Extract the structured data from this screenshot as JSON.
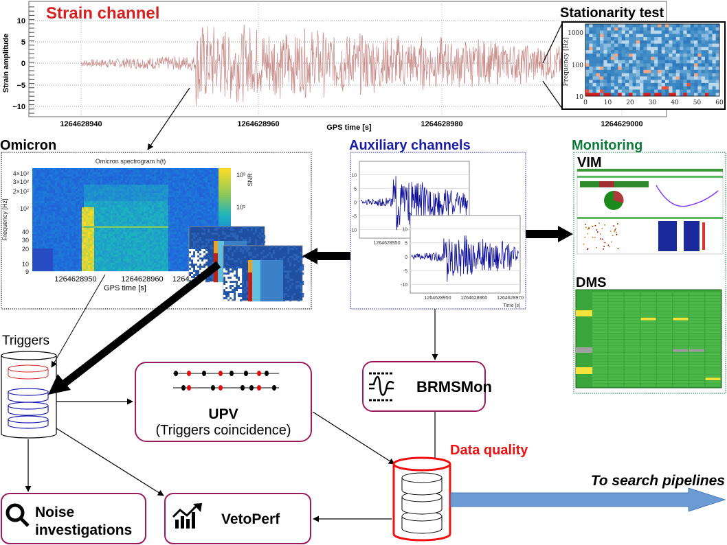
{
  "strain": {
    "title": "Strain channel",
    "ylabel": "Strain amplitude",
    "xlabel": "GPS time [s]",
    "yticks": [
      "10",
      "5",
      "0",
      "−5",
      "−10"
    ],
    "xticks": [
      "1264628940",
      "1264628960",
      "1264628980",
      "1264629000"
    ],
    "color": "#c9908e",
    "title_color": "#d42020"
  },
  "stationarity": {
    "title": "Stationarity test",
    "ylabel": "Frequency [Hz]",
    "yticks": [
      "1000",
      "100",
      "10"
    ],
    "xticks": [
      "0",
      "10",
      "20",
      "30",
      "40",
      "50",
      "60"
    ]
  },
  "omicron": {
    "label": "Omicron",
    "plot_title": "Omicron spectrogram h(t)",
    "ylabel": "Frequency [Hz]",
    "xlabel": "GPS time [s]",
    "yticks": [
      "4×10²",
      "3×10²",
      "2×10²",
      "10²",
      "40",
      "30",
      "20",
      "10",
      "9"
    ],
    "xticks": [
      "1264628950",
      "1264628960",
      "12646"
    ],
    "colorbar_label": "SNR",
    "colorbar_ticks": [
      "10³",
      "10²"
    ]
  },
  "auxiliary": {
    "label": "Auxiliary channels",
    "color": "#1a1aa8",
    "plot1_yticks": [
      "10",
      "5",
      "0",
      "-5",
      "-10"
    ],
    "plot1_xticks": [
      "1264628950"
    ],
    "plot2_yticks": [
      "10",
      "5",
      "0",
      "-5",
      "-10"
    ],
    "plot2_xticks": [
      "1264628950",
      "1264628960",
      "1264628970"
    ],
    "plot2_xlabel": "Time [s]"
  },
  "monitoring": {
    "label": "Monitoring",
    "color": "#0e7a3c",
    "vim_label": "VIM",
    "dms_label": "DMS"
  },
  "triggers": {
    "label": "Triggers"
  },
  "upv": {
    "title": "UPV",
    "subtitle": "(Triggers coincidence)"
  },
  "brmsmon": {
    "label": "BRMSMon",
    "icon": "waveform-band-icon"
  },
  "data_quality": {
    "label": "Data quality",
    "color": "#ee1111"
  },
  "search": {
    "label": "To search pipelines",
    "arrow_color": "#6b9bd2"
  },
  "noise": {
    "line1": "Noise",
    "line2": "investigations",
    "icon": "magnifier-icon"
  },
  "vetoperf": {
    "label": "VetoPerf",
    "icon": "chart-trend-icon"
  }
}
